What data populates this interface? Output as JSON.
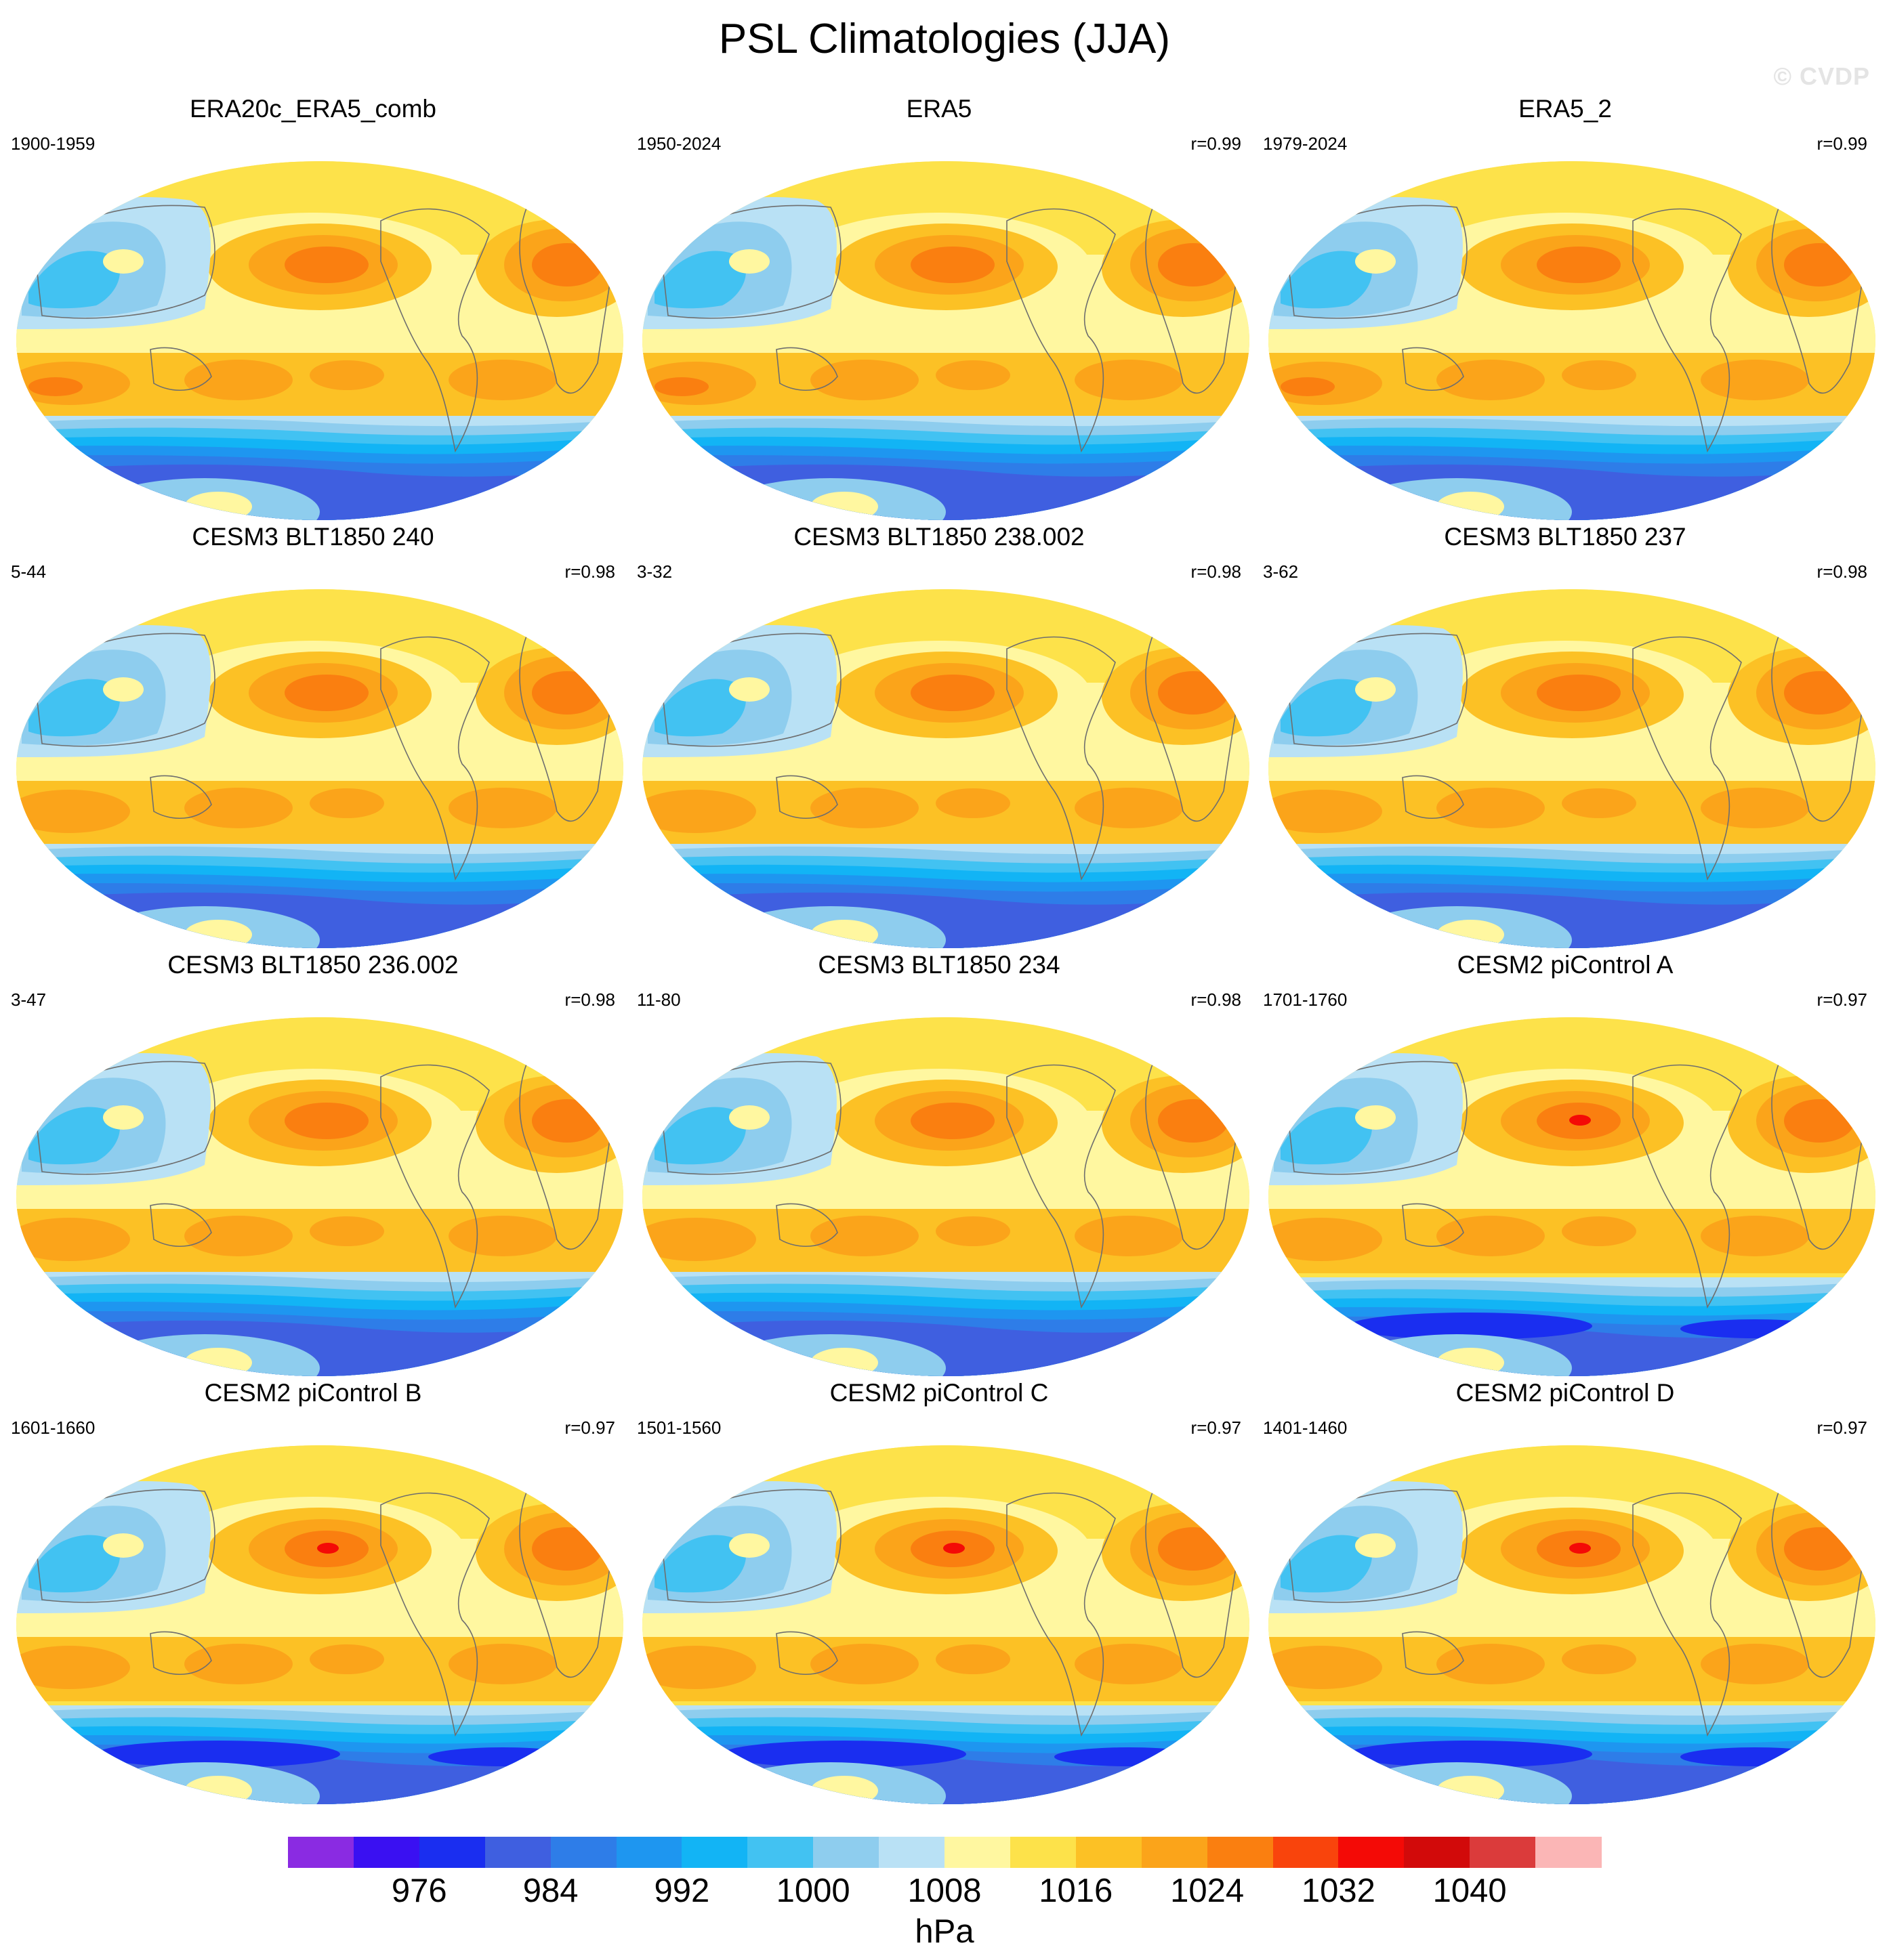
{
  "title": "PSL Climatologies (JJA)",
  "watermark": "© CVDP",
  "panels": [
    {
      "title": "ERA20c_ERA5_comb",
      "years": "1900-1959",
      "corr": "",
      "variant": "obs"
    },
    {
      "title": "ERA5",
      "years": "1950-2024",
      "corr": "r=0.99",
      "variant": "obs"
    },
    {
      "title": "ERA5_2",
      "years": "1979-2024",
      "corr": "r=0.99",
      "variant": "obs"
    },
    {
      "title": "CESM3 BLT1850 240",
      "years": "5-44",
      "corr": "r=0.98",
      "variant": "cesm3"
    },
    {
      "title": "CESM3 BLT1850 238.002",
      "years": "3-32",
      "corr": "r=0.98",
      "variant": "cesm3"
    },
    {
      "title": "CESM3 BLT1850 237",
      "years": "3-62",
      "corr": "r=0.98",
      "variant": "cesm3"
    },
    {
      "title": "CESM3 BLT1850 236.002",
      "years": "3-47",
      "corr": "r=0.98",
      "variant": "cesm3"
    },
    {
      "title": "CESM3 BLT1850 234",
      "years": "11-80",
      "corr": "r=0.98",
      "variant": "cesm3"
    },
    {
      "title": "CESM2 piControl A",
      "years": "1701-1760",
      "corr": "r=0.97",
      "variant": "cesm2"
    },
    {
      "title": "CESM2 piControl B",
      "years": "1601-1660",
      "corr": "r=0.97",
      "variant": "cesm2"
    },
    {
      "title": "CESM2 piControl C",
      "years": "1501-1560",
      "corr": "r=0.97",
      "variant": "cesm2"
    },
    {
      "title": "CESM2 piControl D",
      "years": "1401-1460",
      "corr": "r=0.97",
      "variant": "cesm2"
    }
  ],
  "colorbar": {
    "colors": [
      "#8a2be2",
      "#3a10f2",
      "#1a2ef0",
      "#3f5fe0",
      "#2e7de8",
      "#1e96f0",
      "#12b4f5",
      "#42c2f2",
      "#8ecdee",
      "#b9e1f5",
      "#fff7a0",
      "#fde24a",
      "#fcc125",
      "#fba41a",
      "#fa7f10",
      "#f9440c",
      "#f40a06",
      "#d20a0a",
      "#db3b3b",
      "#fbb6b6"
    ],
    "labels": [
      "976",
      "984",
      "992",
      "1000",
      "1008",
      "1016",
      "1024",
      "1032",
      "1040"
    ],
    "units": "hPa"
  }
}
